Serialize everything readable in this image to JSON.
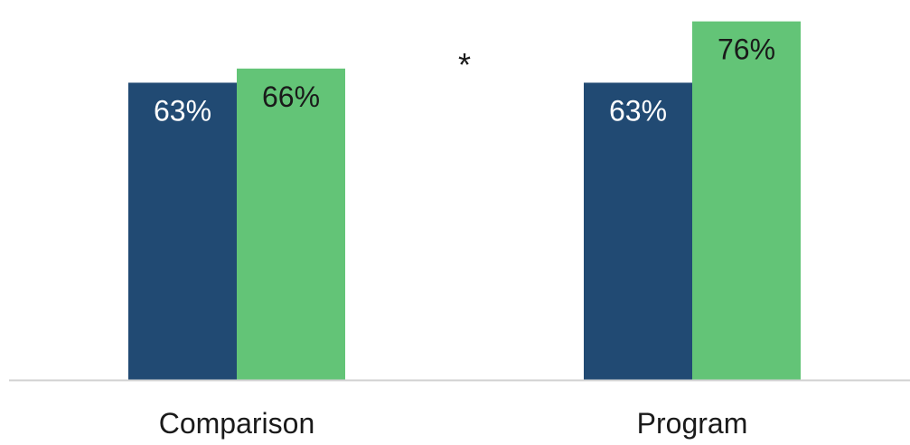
{
  "chart_data": {
    "type": "bar",
    "categories": [
      "Comparison",
      "Program"
    ],
    "series": [
      {
        "values": [
          63,
          63
        ],
        "color": "#214a73",
        "label_color": "#ffffff"
      },
      {
        "values": [
          66,
          76
        ],
        "color": "#63c477",
        "label_color": "#1a1a1a"
      }
    ],
    "value_suffix": "%",
    "annotations": [
      {
        "text": "*",
        "between_categories": [
          0,
          1
        ]
      }
    ],
    "ylim": [
      0,
      79
    ],
    "grid": false,
    "legend": "none",
    "title": "",
    "xlabel": "",
    "ylabel": ""
  }
}
